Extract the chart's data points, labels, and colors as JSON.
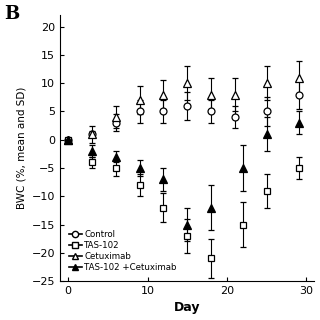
{
  "title_label": "B",
  "xlabel": "Day",
  "ylabel": "BWC (%, mean and SD)",
  "xlim": [
    -1,
    31
  ],
  "ylim": [
    -25,
    22
  ],
  "yticks": [
    -25,
    -20,
    -15,
    -10,
    -5,
    0,
    5,
    10,
    15,
    20
  ],
  "xticks": [
    0,
    10,
    20,
    30
  ],
  "control": {
    "x": [
      0,
      3,
      6,
      9,
      12,
      15,
      18,
      21,
      25,
      29
    ],
    "y": [
      0,
      1,
      3,
      5,
      5,
      6,
      5,
      4,
      5,
      8
    ],
    "yerr": [
      0,
      0.5,
      1.5,
      2,
      2,
      2.5,
      2,
      2,
      2.5,
      2.5
    ],
    "marker": "o",
    "label": "Control"
  },
  "tas102": {
    "x": [
      0,
      3,
      6,
      9,
      12,
      15,
      18,
      22,
      25,
      29
    ],
    "y": [
      0,
      -4,
      -5,
      -8,
      -12,
      -17,
      -21,
      -15,
      -9,
      -5
    ],
    "yerr": [
      0,
      1,
      1.5,
      2,
      2.5,
      3,
      3.5,
      4,
      3,
      2
    ],
    "marker": "s",
    "label": "TAS-102"
  },
  "cetuximab": {
    "x": [
      0,
      3,
      6,
      9,
      12,
      15,
      18,
      21,
      25,
      29
    ],
    "y": [
      0,
      1,
      4,
      7,
      8,
      10,
      8,
      8,
      10,
      11
    ],
    "yerr": [
      0,
      1.5,
      2,
      2.5,
      2.5,
      3,
      3,
      3,
      3,
      3
    ],
    "marker": "^",
    "label": "Cetuximab"
  },
  "combination": {
    "x": [
      0,
      3,
      6,
      9,
      12,
      15,
      18,
      22,
      25,
      29
    ],
    "y": [
      0,
      -2,
      -3,
      -5,
      -7,
      -15,
      -12,
      -5,
      1,
      3
    ],
    "yerr": [
      0,
      1,
      1.0,
      1.5,
      2,
      3,
      4,
      4,
      3,
      2
    ],
    "marker": "^",
    "label": "TAS-102 +Cetuximab"
  },
  "background_color": "white",
  "linewidth": 1.2
}
